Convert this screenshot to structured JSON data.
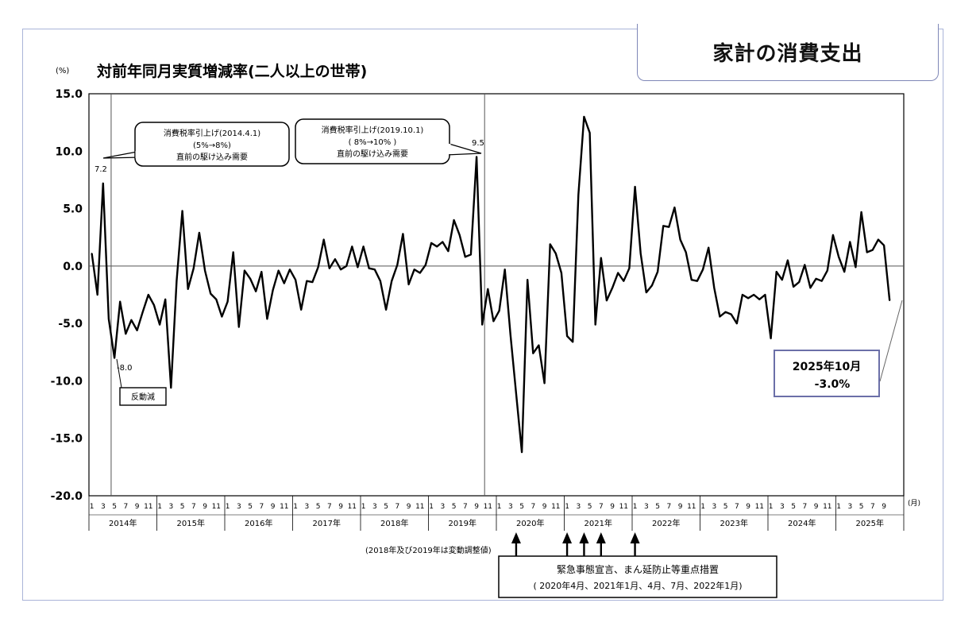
{
  "header": {
    "unit": "(%)",
    "title": "対前年同月実質増減率(二人以上の世帯)",
    "corner_title": "家計の消費支出"
  },
  "axis": {
    "month_unit": "(月)",
    "month_ticks": [
      "1",
      "3",
      "5",
      "7",
      "9",
      "11"
    ],
    "last_year_month_ticks": [
      "1",
      "3",
      "5",
      "7",
      "9"
    ]
  },
  "annotations": {
    "tax2014_line1": "消費税率引上げ(2014.4.1)",
    "tax2014_line2": "(5%→8%)",
    "tax2014_line3": "直前の駆け込み需要",
    "tax2019_line1": "消費税率引上げ(2019.10.1)",
    "tax2019_line2": "( 8%→10% )",
    "tax2019_line3": "直前の駆け込み需要",
    "peak_2014": "7.2",
    "trough_2014": "-8.0",
    "peak_2019": "9.5",
    "rebound_label": "反動減",
    "latest_line1": "2025年10月",
    "latest_line2": "-3.0%",
    "note_adjust": "(2018年及び2019年は変動調整値)",
    "emergency_line1": "緊急事態宣言、まん延防止等重点措置",
    "emergency_line2": "( 2020年4月、2021年1月、4月、7月、2022年1月)"
  },
  "chart_data": {
    "type": "line",
    "title": "対前年同月実質増減率(二人以上の世帯)",
    "ylabel": "(%)",
    "xlabel": "(月)",
    "ylim": [
      -20,
      15
    ],
    "yticks": [
      "15.0",
      "10.0",
      "5.0",
      "0.0",
      "-5.0",
      "-10.0",
      "-15.0",
      "-20.0"
    ],
    "grid": false,
    "years": [
      "2014年",
      "2015年",
      "2016年",
      "2017年",
      "2018年",
      "2019年",
      "2020年",
      "2021年",
      "2022年",
      "2023年",
      "2024年",
      "2025年"
    ],
    "start": "2014-01",
    "end": "2025-10",
    "series": [
      {
        "values": [
          1.1,
          -2.5,
          7.2,
          -4.6,
          -8.0,
          -3.1,
          -5.9,
          -4.7,
          -5.6,
          -4.0,
          -2.5,
          -3.4,
          -5.1,
          -2.9,
          -10.6,
          -1.3,
          4.8,
          -2.0,
          -0.2,
          2.9,
          -0.4,
          -2.4,
          -2.9,
          -4.4,
          -3.1,
          1.2,
          -5.3,
          -0.4,
          -1.1,
          -2.2,
          -0.5,
          -4.6,
          -2.1,
          -0.4,
          -1.5,
          -0.3,
          -1.2,
          -3.8,
          -1.3,
          -1.4,
          -0.1,
          2.3,
          -0.2,
          0.6,
          -0.3,
          0.0,
          1.7,
          -0.1,
          1.7,
          -0.2,
          -0.3,
          -1.3,
          -3.8,
          -1.3,
          0.1,
          2.8,
          -1.6,
          -0.3,
          -0.6,
          0.1,
          2.0,
          1.7,
          2.1,
          1.3,
          4.0,
          2.7,
          0.8,
          1.0,
          9.5,
          -5.1,
          -2.0,
          -4.8,
          -3.9,
          -0.3,
          -6.0,
          -11.1,
          -16.2,
          -1.2,
          -7.6,
          -6.9,
          -10.2,
          1.9,
          1.1,
          -0.6,
          -6.1,
          -6.6,
          6.2,
          13.0,
          11.6,
          -5.1,
          0.7,
          -3.0,
          -1.9,
          -0.6,
          -1.3,
          -0.2,
          6.9,
          1.1,
          -2.3,
          -1.7,
          -0.5,
          3.5,
          3.4,
          5.1,
          2.3,
          1.2,
          -1.2,
          -1.3,
          -0.3,
          1.6,
          -1.9,
          -4.4,
          -4.0,
          -4.2,
          -5.0,
          -2.5,
          -2.8,
          -2.5,
          -2.9,
          -2.5,
          -6.3,
          -0.5,
          -1.2,
          0.5,
          -1.8,
          -1.4,
          0.1,
          -1.9,
          -1.1,
          -1.3,
          -0.4,
          2.7,
          0.8,
          -0.5,
          2.1,
          -0.1,
          4.7,
          1.2,
          1.4,
          2.3,
          1.8,
          -3.0
        ]
      }
    ],
    "reference_lines_at": [
      "2014-04",
      "2019-10"
    ],
    "arrows_at": [
      "2020-04",
      "2021-01",
      "2021-04",
      "2021-07",
      "2022-01"
    ]
  }
}
